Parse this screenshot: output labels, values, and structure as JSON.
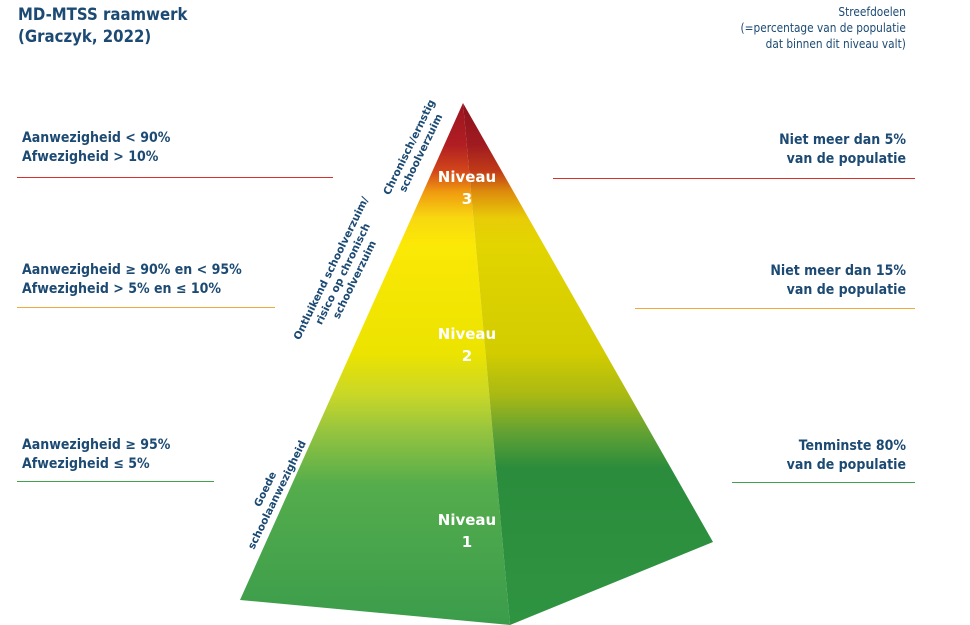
{
  "title": {
    "line1": "MD-MTSS raamwerk",
    "line2": "(Graczyk, 2022)"
  },
  "goals_heading": {
    "line1": "Streefdoelen",
    "line2": "(=percentage van de populatie",
    "line3": "dat binnen dit niveau valt)"
  },
  "levels": [
    {
      "id": "3",
      "name": "Niveau",
      "number": "3",
      "left_line1": "Aanwezigheid < 90%",
      "left_line2": "Afwezigheid > 10%",
      "right_line1": "Niet meer dan 5%",
      "right_line2": "van de populatie",
      "side_line1": "Chronisch/ernstig",
      "side_line2": "schoolverzuim",
      "side_line3": "",
      "rule_color": "#d7312c"
    },
    {
      "id": "2",
      "name": "Niveau",
      "number": "2",
      "left_line1": "Aanwezigheid ≥ 90% en < 95%",
      "left_line2": "Afwezigheid > 5% en ≤ 10%",
      "right_line1": "Niet meer dan 15%",
      "right_line2": "van de populatie",
      "side_line1": "Ontluikend schoolverzuim/",
      "side_line2": "risico op chronisch",
      "side_line3": "schoolverzuim",
      "rule_color": "#f2a93b"
    },
    {
      "id": "1",
      "name": "Niveau",
      "number": "1",
      "left_line1": "Aanwezigheid ≥ 95%",
      "left_line2": "Afwezigheid ≤ 5%",
      "right_line1": "Tenminste 80%",
      "right_line2": "van de populatie",
      "side_line1": "Goede",
      "side_line2": "schoolaanwezigheid",
      "side_line3": "",
      "rule_color": "#3fa34d"
    }
  ],
  "colors": {
    "text": "#1c4a73",
    "red": "#b01e22",
    "orange": "#f0a010",
    "yellow": "#f5e800",
    "green": "#3c9f4c"
  }
}
